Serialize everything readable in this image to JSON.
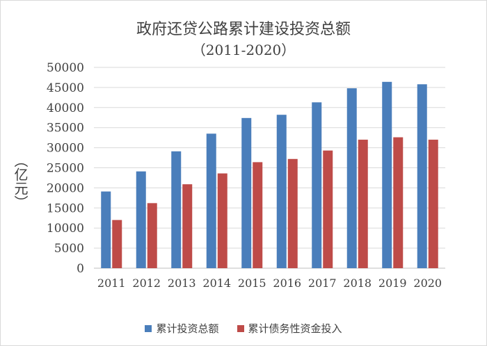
{
  "chart_data": {
    "type": "bar",
    "title": "政府还贷公路累计建设投资总额",
    "subtitle": "（2011-2020）",
    "ylabel": "（亿元）",
    "xlabel": "",
    "categories": [
      "2011",
      "2012",
      "2013",
      "2014",
      "2015",
      "2016",
      "2017",
      "2018",
      "2019",
      "2020"
    ],
    "ylim": [
      0,
      50000
    ],
    "yticks": [
      "0",
      "5000",
      "10000",
      "15000",
      "20000",
      "25000",
      "30000",
      "35000",
      "40000",
      "45000",
      "50000"
    ],
    "grid": true,
    "legend_position": "bottom",
    "series": [
      {
        "name": "累计投资总额",
        "color": "#4a7ebb",
        "values": [
          19100,
          24100,
          29100,
          33500,
          37400,
          38200,
          41300,
          44800,
          46400,
          45800
        ]
      },
      {
        "name": "累计债务性资金投入",
        "color": "#be4b48",
        "values": [
          12000,
          16200,
          20900,
          23600,
          26400,
          27200,
          29300,
          32000,
          32600,
          32000
        ]
      }
    ]
  }
}
